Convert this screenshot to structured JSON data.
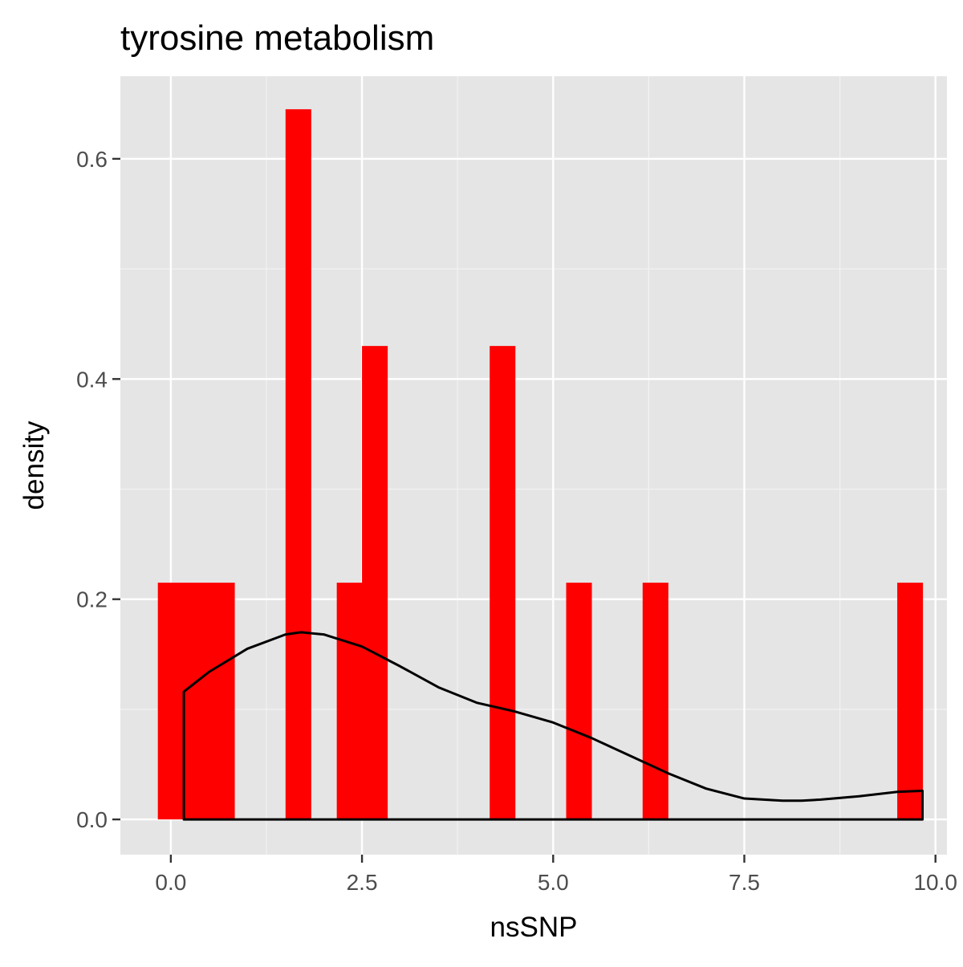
{
  "chart_data": {
    "type": "bar",
    "title": "tyrosine metabolism",
    "xlabel": "nsSNP",
    "ylabel": "density",
    "xlim": [
      -0.66,
      10.15
    ],
    "ylim": [
      -0.032,
      0.675
    ],
    "x_ticks": [
      0.0,
      2.5,
      5.0,
      7.5,
      10.0
    ],
    "x_tick_labels": [
      "0.0",
      "2.5",
      "5.0",
      "7.5",
      "10.0"
    ],
    "y_ticks": [
      0.0,
      0.2,
      0.4,
      0.6
    ],
    "y_tick_labels": [
      "0.0",
      "0.2",
      "0.4",
      "0.6"
    ],
    "grid": true,
    "bar_color": "#ff0000",
    "density_color": "#000000",
    "panel_background": "#e5e5e5",
    "histogram_bins": [
      {
        "x0": -0.17,
        "x1": 0.17,
        "density": 0.215
      },
      {
        "x0": 0.17,
        "x1": 0.5,
        "density": 0.215
      },
      {
        "x0": 0.5,
        "x1": 0.83,
        "density": 0.215
      },
      {
        "x0": 1.5,
        "x1": 1.83,
        "density": 0.645
      },
      {
        "x0": 2.17,
        "x1": 2.5,
        "density": 0.215
      },
      {
        "x0": 2.5,
        "x1": 2.83,
        "density": 0.43
      },
      {
        "x0": 4.17,
        "x1": 4.5,
        "density": 0.43
      },
      {
        "x0": 5.17,
        "x1": 5.5,
        "density": 0.215
      },
      {
        "x0": 6.17,
        "x1": 6.5,
        "density": 0.215
      },
      {
        "x0": 9.5,
        "x1": 9.83,
        "density": 0.215
      }
    ],
    "density_curve": {
      "x": [
        0.17,
        0.5,
        1.0,
        1.5,
        1.7,
        2.0,
        2.5,
        3.0,
        3.5,
        4.0,
        4.5,
        5.0,
        5.5,
        6.0,
        6.5,
        7.0,
        7.5,
        8.0,
        8.25,
        8.5,
        9.0,
        9.5,
        9.83
      ],
      "y": [
        0.116,
        0.134,
        0.155,
        0.168,
        0.17,
        0.168,
        0.157,
        0.139,
        0.12,
        0.106,
        0.098,
        0.088,
        0.074,
        0.058,
        0.042,
        0.028,
        0.019,
        0.017,
        0.017,
        0.018,
        0.021,
        0.025,
        0.026
      ]
    }
  }
}
